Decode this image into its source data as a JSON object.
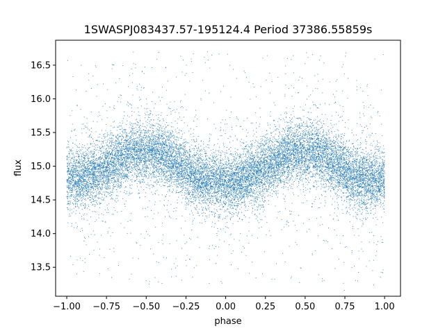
{
  "chart_data": {
    "type": "scatter",
    "title": "1SWASPJ083437.57-195124.4 Period 37386.55859s",
    "xlabel": "phase",
    "ylabel": "flux",
    "xlim": [
      -1.07,
      1.1
    ],
    "ylim": [
      13.07,
      16.87
    ],
    "xticks": [
      -1.0,
      -0.75,
      -0.5,
      -0.25,
      0.0,
      0.25,
      0.5,
      0.75,
      1.0
    ],
    "xtick_labels": [
      "−1.00",
      "−0.75",
      "−0.50",
      "−0.25",
      "0.00",
      "0.25",
      "0.50",
      "0.75",
      "1.00"
    ],
    "yticks": [
      13.5,
      14.0,
      14.5,
      15.0,
      15.5,
      16.0,
      16.5
    ],
    "ytick_labels": [
      "13.5",
      "14.0",
      "14.5",
      "15.0",
      "15.5",
      "16.0",
      "16.5"
    ],
    "grid": false,
    "marker_color": "#1f77b4",
    "light_curve": {
      "phase": [
        -1.0,
        -0.9,
        -0.8,
        -0.7,
        -0.6,
        -0.5,
        -0.4,
        -0.3,
        -0.2,
        -0.1,
        0.0,
        0.1,
        0.2,
        0.3,
        0.4,
        0.5,
        0.6,
        0.7,
        0.8,
        0.9,
        1.0
      ],
      "flux": [
        14.8,
        14.82,
        14.9,
        15.05,
        15.18,
        15.23,
        15.18,
        15.02,
        14.86,
        14.78,
        14.76,
        14.8,
        14.9,
        15.05,
        15.18,
        15.23,
        15.18,
        15.02,
        14.86,
        14.78,
        14.8
      ],
      "scatter": 0.22,
      "outlier_flux_range": [
        13.25,
        16.7
      ],
      "n_points": 16000
    }
  }
}
